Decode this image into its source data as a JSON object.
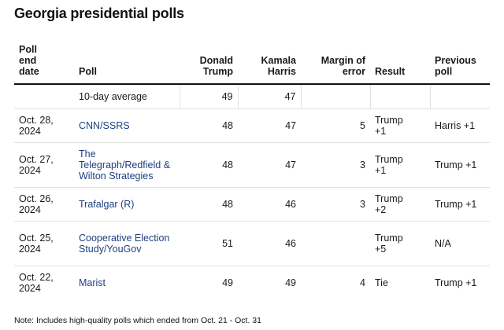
{
  "title": "Georgia presidential polls",
  "headers": {
    "date": "Poll end date",
    "poll": "Poll",
    "trump": "Donald Trump",
    "harris": "Kamala Harris",
    "margin": "Margin of error",
    "result": "Result",
    "previous": "Previous poll"
  },
  "average": {
    "label": "10-day average",
    "trump": "49",
    "harris": "47"
  },
  "rows": [
    {
      "date": "Oct. 28, 2024",
      "poll": "CNN/SSRS",
      "trump": "48",
      "harris": "47",
      "margin": "5",
      "result": "Trump +1",
      "previous": "Harris +1"
    },
    {
      "date": "Oct. 27, 2024",
      "poll": "The Telegraph/Redfield & Wilton Strategies",
      "trump": "48",
      "harris": "47",
      "margin": "3",
      "result": "Trump +1",
      "previous": "Trump +1"
    },
    {
      "date": "Oct. 26, 2024",
      "poll": "Trafalgar (R)",
      "trump": "48",
      "harris": "46",
      "margin": "3",
      "result": "Trump +2",
      "previous": "Trump +1"
    },
    {
      "date": "Oct. 25, 2024",
      "poll": "Cooperative Election Study/YouGov",
      "trump": "51",
      "harris": "46",
      "margin": "",
      "result": "Trump +5",
      "previous": "N/A"
    },
    {
      "date": "Oct. 22, 2024",
      "poll": "Marist",
      "trump": "49",
      "harris": "49",
      "margin": "4",
      "result": "Tie",
      "previous": "Trump +1"
    }
  ],
  "note": "Note: Includes high-quality polls which ended from Oct. 21 - Oct. 31",
  "colors": {
    "poll_link": "#1f3f80",
    "rule": "#111111",
    "grid": "#e2e2e2"
  }
}
